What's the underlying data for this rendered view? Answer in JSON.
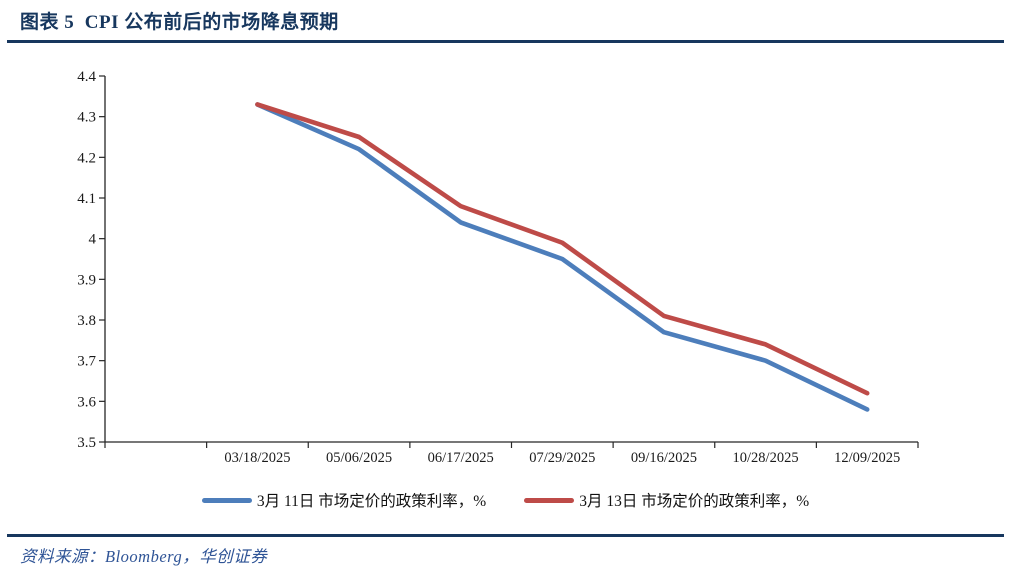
{
  "header": {
    "title": "图表 5  CPI 公布前后的市场降息预期"
  },
  "source": {
    "text": "资料来源：Bloomberg，华创证券"
  },
  "colors": {
    "navy": "#17375E",
    "axis": "#262626",
    "tick_label": "#1a1a1a",
    "blue_series": "#4D7EBB",
    "red_series": "#BE4B48",
    "source_text": "#2F5496"
  },
  "chart_data": {
    "type": "line",
    "title": "CPI 公布前后的市场降息预期",
    "categories": [
      "03/18/2025",
      "05/06/2025",
      "06/17/2025",
      "07/29/2025",
      "09/16/2025",
      "10/28/2025",
      "12/09/2025"
    ],
    "series": [
      {
        "name": "3月 11日 市场定价的政策利率，%",
        "color": "#4D7EBB",
        "values": [
          4.33,
          4.22,
          4.04,
          3.95,
          3.77,
          3.7,
          3.58
        ]
      },
      {
        "name": "3月 13日 市场定价的政策利率，%",
        "color": "#BE4B48",
        "values": [
          4.33,
          4.25,
          4.08,
          3.99,
          3.81,
          3.74,
          3.62
        ]
      }
    ],
    "xlabel": "",
    "ylabel": "",
    "ylim": [
      3.5,
      4.4
    ],
    "ytick_step": 0.1,
    "ytick_labels": [
      "3.5",
      "3.6",
      "3.7",
      "3.8",
      "3.9",
      "4",
      "4.1",
      "4.2",
      "4.3",
      "4.4"
    ],
    "grid": false,
    "legend_position": "bottom"
  }
}
